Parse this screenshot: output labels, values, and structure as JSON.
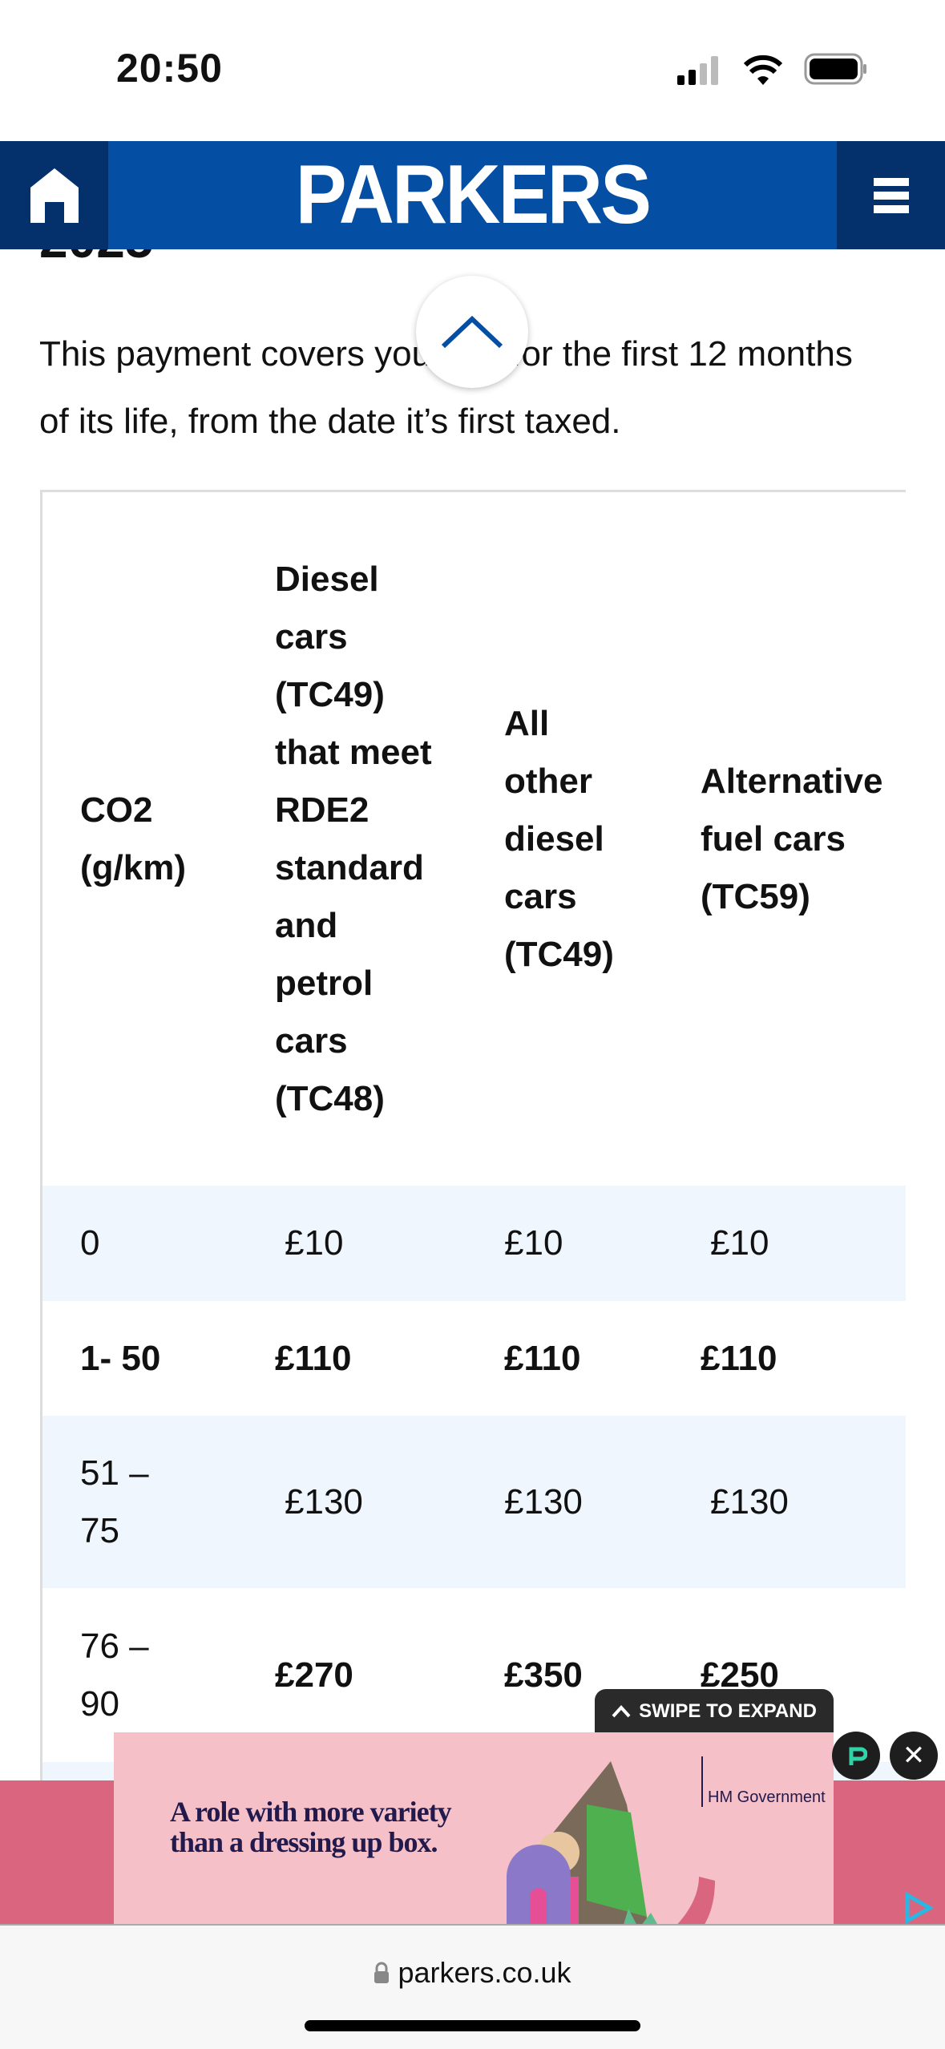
{
  "status_bar": {
    "time": "20:50"
  },
  "header": {
    "logo": "PARKERS"
  },
  "article": {
    "heading_fragment": "2025",
    "paragraph": "This payment covers your car for the first 12 months of its life, from the date it’s first taxed."
  },
  "table": {
    "headers": [
      "CO2 (g/km)",
      "Diesel cars (TC49) that meet RDE2 standard and petrol cars (TC48)",
      "All other diesel cars (TC49)",
      "Alternative fuel cars (TC59)"
    ],
    "rows": [
      [
        "0",
        "£10",
        "£10",
        "£10"
      ],
      [
        "1- 50",
        "£110",
        "£110",
        "£110"
      ],
      [
        "51 – 75",
        "£130",
        "£130",
        "£130"
      ],
      [
        "76 – 90",
        "£270",
        "£350",
        "£250"
      ]
    ]
  },
  "ad": {
    "swipe_label": "SWIPE TO EXPAND",
    "headline": "A role with more variety than a dressing up box.",
    "advertiser": "HM Government",
    "band_color": "#d9657f",
    "bg_color": "#f5c0c8"
  },
  "browser": {
    "url": "parkers.co.uk"
  },
  "colors": {
    "brand": "#044ea3",
    "brand_dark": "#04306b",
    "row_alt": "#f0f6fe"
  }
}
